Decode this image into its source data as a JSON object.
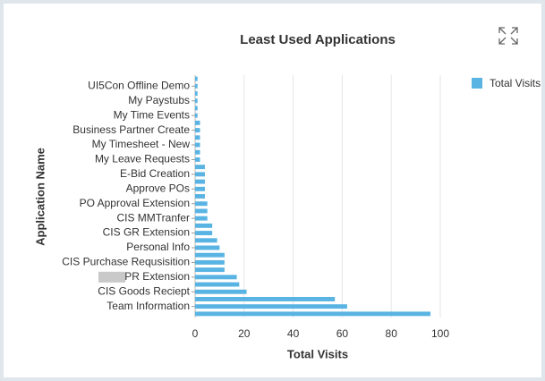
{
  "chart_data": {
    "type": "barh",
    "title": "Least Used Applications",
    "x_label": "Total Visits",
    "y_label": "Application Name",
    "categories": [
      null,
      "UI5Con Offline Demo",
      null,
      "My Paystubs",
      null,
      "My Time Events",
      null,
      "Business Partner Create",
      null,
      "My Timesheet - New",
      null,
      "My Leave Requests",
      null,
      "E-Bid Creation",
      null,
      "Approve POs",
      null,
      "PO Approval Extension",
      null,
      "CIS MMTranfer",
      null,
      "CIS GR Extension",
      null,
      "Personal Info",
      null,
      "CIS Purchase Requsisition",
      null,
      "PR Extension",
      null,
      "CIS Goods Reciept",
      null,
      "Team Information",
      null
    ],
    "series": [
      {
        "name": "Total Visits",
        "color": "#5ab4e3",
        "values": [
          1,
          1,
          1,
          1,
          1,
          1,
          2,
          2,
          2,
          2,
          2,
          2,
          4,
          4,
          4,
          4,
          4,
          5,
          5,
          5,
          7,
          7,
          9,
          10,
          12,
          12,
          12,
          17,
          18,
          21,
          57,
          62,
          96
        ]
      }
    ],
    "xlim": [
      0,
      100
    ],
    "xticks": [
      0,
      20,
      40,
      60,
      80,
      100
    ],
    "grid": true,
    "legend": "top-right"
  }
}
